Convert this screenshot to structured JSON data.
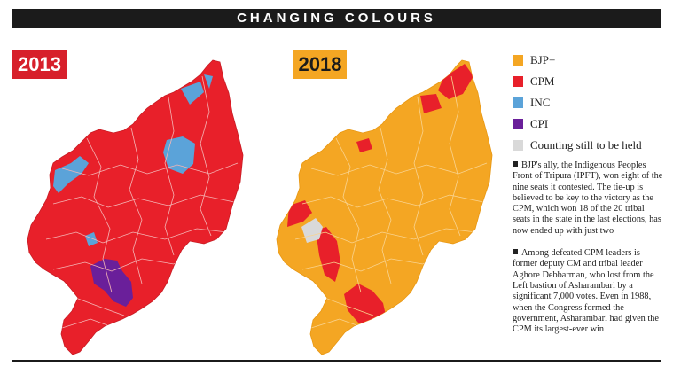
{
  "title": "CHANGING COLOURS",
  "maps": [
    {
      "year": "2013",
      "badge_color": "#d7202b"
    },
    {
      "year": "2018",
      "badge_color": "#f4a623"
    }
  ],
  "legend": [
    {
      "label": "BJP+",
      "color": "#f4a623"
    },
    {
      "label": "CPM",
      "color": "#e8202a"
    },
    {
      "label": "INC",
      "color": "#5ba3d9"
    },
    {
      "label": "CPI",
      "color": "#6a1f9a"
    },
    {
      "label": "Counting still to be held",
      "color": "#d9d9d9"
    }
  ],
  "notes": [
    "BJP's ally, the Indigenous Peoples Front of Tripura (IPFT), won eight of the nine seats it contested. The tie-up is believed to be key to the victory as the CPM, which won 18 of the 20 tribal seats in the state in the last elections, has now ended up with just two",
    "Among defeated CPM leaders is former deputy CM and tribal leader Aghore Debbarman, who lost from the Left bastion of Asharambari by a significant 7,000 votes. Even in 1988, when the Congress formed the government, Asharambari had given the CPM its largest-ever win"
  ]
}
